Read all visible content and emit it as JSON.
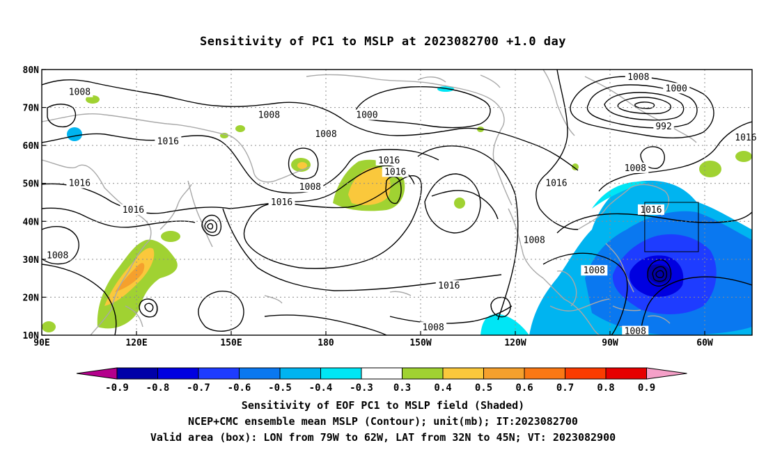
{
  "title": "Sensitivity of PC1 to MSLP at 2023082700 +1.0 day",
  "chart_data": {
    "type": "heatmap",
    "title": "Sensitivity of PC1 to MSLP at 2023082700 +1.0 day",
    "x_ticks": [
      "90E",
      "120E",
      "150E",
      "180",
      "150W",
      "120W",
      "90W",
      "60W"
    ],
    "x_tick_values": [
      90,
      120,
      150,
      180,
      210,
      240,
      270,
      300
    ],
    "y_ticks": [
      "10N",
      "20N",
      "30N",
      "40N",
      "50N",
      "60N",
      "70N",
      "80N"
    ],
    "y_tick_values": [
      10,
      20,
      30,
      40,
      50,
      60,
      70,
      80
    ],
    "xlim": [
      90,
      315
    ],
    "ylim": [
      10,
      80
    ],
    "grid": true,
    "colorbar": {
      "labels": [
        "-0.9",
        "-0.8",
        "-0.7",
        "-0.6",
        "-0.5",
        "-0.4",
        "-0.3",
        "0.3",
        "0.4",
        "0.5",
        "0.6",
        "0.7",
        "0.8",
        "0.9"
      ],
      "colors": [
        "#0000a8",
        "#0000e0",
        "#1e3cff",
        "#0a78f0",
        "#00b4f0",
        "#00e6f5",
        "#ffffff",
        "#a0d232",
        "#fac83c",
        "#f5a02d",
        "#fa7814",
        "#fa3c00",
        "#e60000"
      ],
      "under_color": "#b4008c",
      "over_color": "#f5a0c8"
    },
    "contour_unit": "mb",
    "contour_labels": [
      {
        "text": "1008",
        "lon": 102,
        "lat": 74
      },
      {
        "text": "1008",
        "lon": 162,
        "lat": 68
      },
      {
        "text": "1000",
        "lon": 193,
        "lat": 68
      },
      {
        "text": "1008",
        "lon": 180,
        "lat": 63
      },
      {
        "text": "1008",
        "lon": 279,
        "lat": 78
      },
      {
        "text": "1000",
        "lon": 291,
        "lat": 75
      },
      {
        "text": "992",
        "lon": 287,
        "lat": 65
      },
      {
        "text": "1016",
        "lon": 313,
        "lat": 62
      },
      {
        "text": "1016",
        "lon": 130,
        "lat": 61
      },
      {
        "text": "1016",
        "lon": 200,
        "lat": 56
      },
      {
        "text": "1016",
        "lon": 202,
        "lat": 53
      },
      {
        "text": "1008",
        "lon": 278,
        "lat": 54
      },
      {
        "text": "1016",
        "lon": 102,
        "lat": 50
      },
      {
        "text": "1008",
        "lon": 175,
        "lat": 49
      },
      {
        "text": "1016",
        "lon": 253,
        "lat": 50
      },
      {
        "text": "1016",
        "lon": 119,
        "lat": 43
      },
      {
        "text": "1016",
        "lon": 166,
        "lat": 45
      },
      {
        "text": "1016",
        "lon": 283,
        "lat": 43
      },
      {
        "text": "1008",
        "lon": 95,
        "lat": 31
      },
      {
        "text": "1008",
        "lon": 246,
        "lat": 35
      },
      {
        "text": "1008",
        "lon": 265,
        "lat": 27
      },
      {
        "text": "1016",
        "lon": 219,
        "lat": 23
      },
      {
        "text": "1008",
        "lon": 214,
        "lat": 12
      },
      {
        "text": "1008",
        "lon": 278,
        "lat": 11
      }
    ],
    "valid_box": {
      "lon_min": 281,
      "lon_max": 298,
      "lat_min": 32,
      "lat_max": 45
    }
  },
  "captions": [
    "Sensitivity of EOF PC1 to MSLP field (Shaded)",
    "NCEP+CMC ensemble mean MSLP (Contour); unit(mb); IT:2023082700",
    "Valid area (box): LON from 79W to 62W, LAT from 32N to 45N; VT: 2023082900"
  ]
}
